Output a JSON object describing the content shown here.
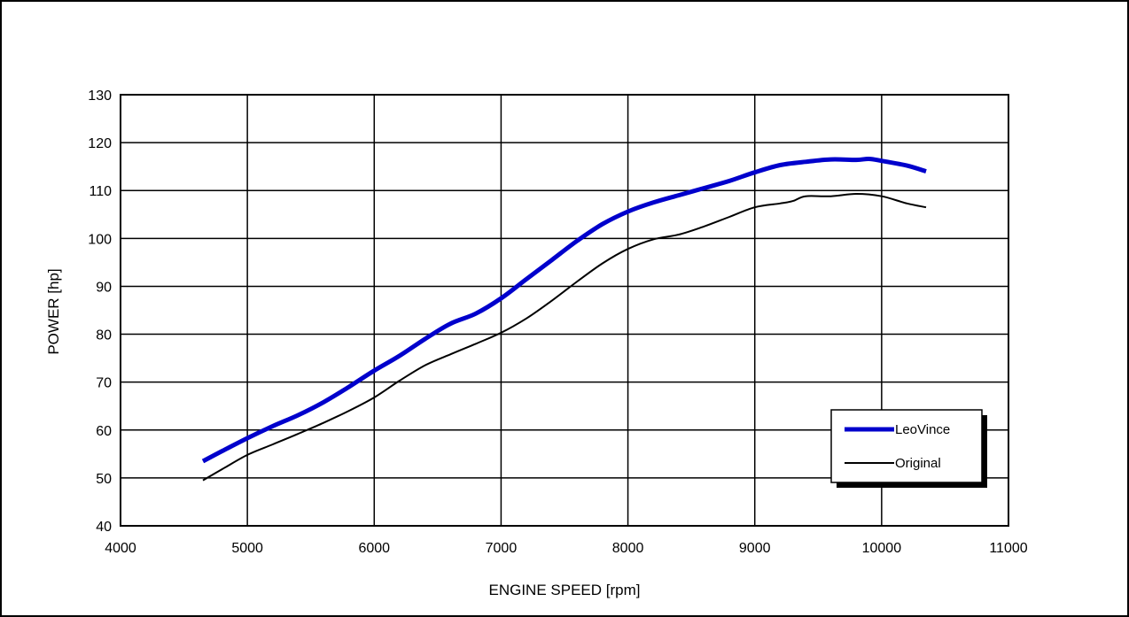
{
  "chart_data": {
    "type": "line",
    "xlabel": "ENGINE SPEED [rpm]",
    "ylabel": "POWER [hp]",
    "xlim": [
      4000,
      11000
    ],
    "ylim": [
      40,
      130
    ],
    "x_ticks": [
      4000,
      5000,
      6000,
      7000,
      8000,
      9000,
      10000,
      11000
    ],
    "y_ticks": [
      40,
      50,
      60,
      70,
      80,
      90,
      100,
      110,
      120,
      130
    ],
    "grid": true,
    "legend_position": "bottom-right",
    "series": [
      {
        "name": "LeoVince",
        "color": "#0000cc",
        "line_style": "thick",
        "points": [
          [
            4650,
            53.5
          ],
          [
            4800,
            55.6
          ],
          [
            5000,
            58.3
          ],
          [
            5200,
            60.8
          ],
          [
            5400,
            63.1
          ],
          [
            5600,
            65.8
          ],
          [
            5800,
            69.0
          ],
          [
            6000,
            72.4
          ],
          [
            6200,
            75.5
          ],
          [
            6400,
            79.0
          ],
          [
            6600,
            82.2
          ],
          [
            6800,
            84.3
          ],
          [
            7000,
            87.5
          ],
          [
            7200,
            91.5
          ],
          [
            7400,
            95.5
          ],
          [
            7600,
            99.5
          ],
          [
            7800,
            103.0
          ],
          [
            8000,
            105.6
          ],
          [
            8200,
            107.5
          ],
          [
            8400,
            109.0
          ],
          [
            8600,
            110.5
          ],
          [
            8800,
            112.0
          ],
          [
            9000,
            113.8
          ],
          [
            9200,
            115.3
          ],
          [
            9400,
            116.0
          ],
          [
            9600,
            116.5
          ],
          [
            9800,
            116.4
          ],
          [
            9900,
            116.6
          ],
          [
            10000,
            116.2
          ],
          [
            10200,
            115.2
          ],
          [
            10350,
            114.0
          ]
        ]
      },
      {
        "name": "Original",
        "color": "#000000",
        "line_style": "thin",
        "points": [
          [
            4650,
            49.5
          ],
          [
            4800,
            51.8
          ],
          [
            5000,
            54.8
          ],
          [
            5200,
            57.0
          ],
          [
            5400,
            59.2
          ],
          [
            5600,
            61.5
          ],
          [
            5800,
            64.0
          ],
          [
            6000,
            66.8
          ],
          [
            6200,
            70.3
          ],
          [
            6400,
            73.5
          ],
          [
            6600,
            75.8
          ],
          [
            6800,
            78.0
          ],
          [
            7000,
            80.3
          ],
          [
            7200,
            83.3
          ],
          [
            7400,
            87.0
          ],
          [
            7600,
            91.0
          ],
          [
            7800,
            94.8
          ],
          [
            8000,
            97.8
          ],
          [
            8200,
            99.8
          ],
          [
            8400,
            100.8
          ],
          [
            8600,
            102.5
          ],
          [
            8800,
            104.5
          ],
          [
            9000,
            106.5
          ],
          [
            9200,
            107.3
          ],
          [
            9300,
            107.8
          ],
          [
            9400,
            108.8
          ],
          [
            9600,
            108.8
          ],
          [
            9800,
            109.3
          ],
          [
            10000,
            108.8
          ],
          [
            10200,
            107.3
          ],
          [
            10350,
            106.5
          ]
        ]
      }
    ]
  }
}
